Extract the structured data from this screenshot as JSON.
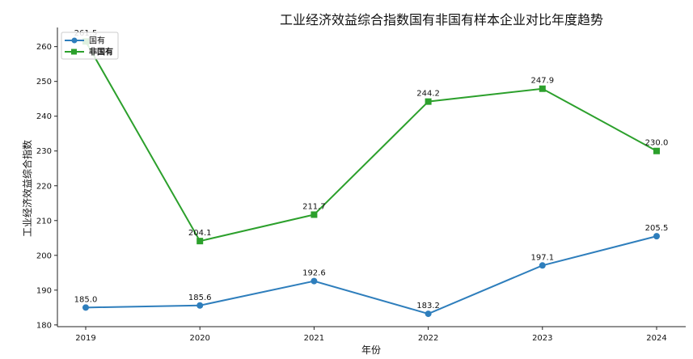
{
  "chart_data": {
    "type": "line",
    "title": "工业经济效益综合指数国有非国有样本企业对比年度趋势",
    "xlabel": "年份",
    "ylabel": "工业经济效益综合指数",
    "categories": [
      "2019",
      "2020",
      "2021",
      "2022",
      "2023",
      "2024"
    ],
    "yticks": [
      180,
      190,
      200,
      210,
      220,
      230,
      240,
      250,
      260
    ],
    "ylim": [
      179.5,
      265.5
    ],
    "grid": false,
    "legend_position": "top-left",
    "series": [
      {
        "name": "国有",
        "color": "#2e7ebc",
        "marker": "circle",
        "values": [
          185.0,
          185.6,
          192.6,
          183.2,
          197.1,
          205.5
        ],
        "labels": [
          "185.0",
          "185.6",
          "192.6",
          "183.2",
          "197.1",
          "205.5"
        ]
      },
      {
        "name": "非国有",
        "color": "#2ca02c",
        "marker": "square",
        "values": [
          261.5,
          204.1,
          211.7,
          244.2,
          247.9,
          230.0
        ],
        "labels": [
          "261.5",
          "204.1",
          "211.7",
          "244.2",
          "247.9",
          "230.0"
        ]
      }
    ]
  }
}
